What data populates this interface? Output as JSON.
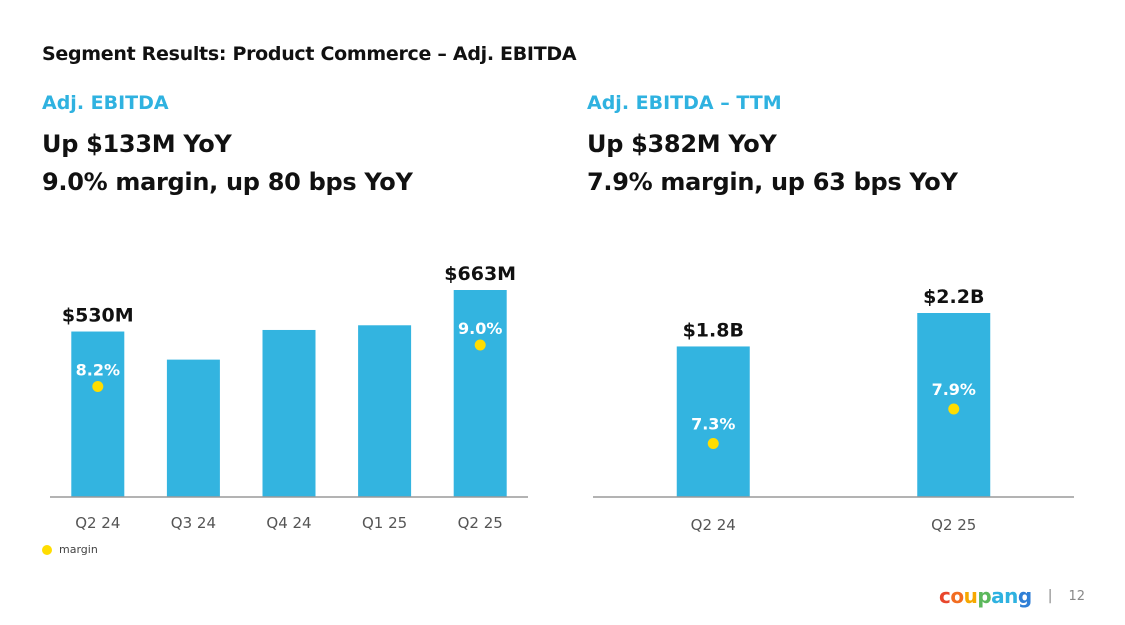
{
  "slide": {
    "title": "Segment Results: Product Commerce – Adj. EBITDA",
    "page_number": "12"
  },
  "left": {
    "kicker": "Adj. EBITDA",
    "headline1": "Up $133M YoY",
    "headline2": "9.0% margin, up 80 bps YoY"
  },
  "right": {
    "kicker": "Adj. EBITDA – TTM",
    "headline1": "Up $382M YoY",
    "headline2": "7.9% margin, up 63 bps YoY"
  },
  "legend": {
    "label": "margin"
  },
  "logo": {
    "text": "coupang",
    "letter_colors": [
      "#e8462c",
      "#f26d21",
      "#f6a800",
      "#5cb85c",
      "#2fb2e0",
      "#2fb2e0",
      "#2f7fd6"
    ]
  },
  "colors": {
    "bar": "#33b4e0",
    "kicker": "#2fb2e0",
    "margin_dot": "#ffdd00"
  },
  "chart_data": [
    {
      "type": "bar",
      "title": "Adj. EBITDA",
      "categories": [
        "Q2 24",
        "Q3 24",
        "Q4 24",
        "Q1 25",
        "Q2 25"
      ],
      "values": [
        530,
        440,
        535,
        550,
        663
      ],
      "value_labels": [
        "$530M",
        "",
        "",
        "",
        "$663M"
      ],
      "margin_labels": [
        "8.2%",
        "",
        "",
        "",
        "9.0%"
      ],
      "margin_values": [
        8.2,
        null,
        null,
        null,
        9.0
      ],
      "ylim": [
        0,
        663
      ]
    },
    {
      "type": "bar",
      "title": "Adj. EBITDA – TTM",
      "categories": [
        "Q2 24",
        "Q2 25"
      ],
      "values": [
        1.8,
        2.2
      ],
      "value_labels": [
        "$1.8B",
        "$2.2B"
      ],
      "margin_labels": [
        "7.3%",
        "7.9%"
      ],
      "margin_values": [
        7.3,
        7.9
      ],
      "ylim": [
        0,
        2.2
      ]
    }
  ]
}
